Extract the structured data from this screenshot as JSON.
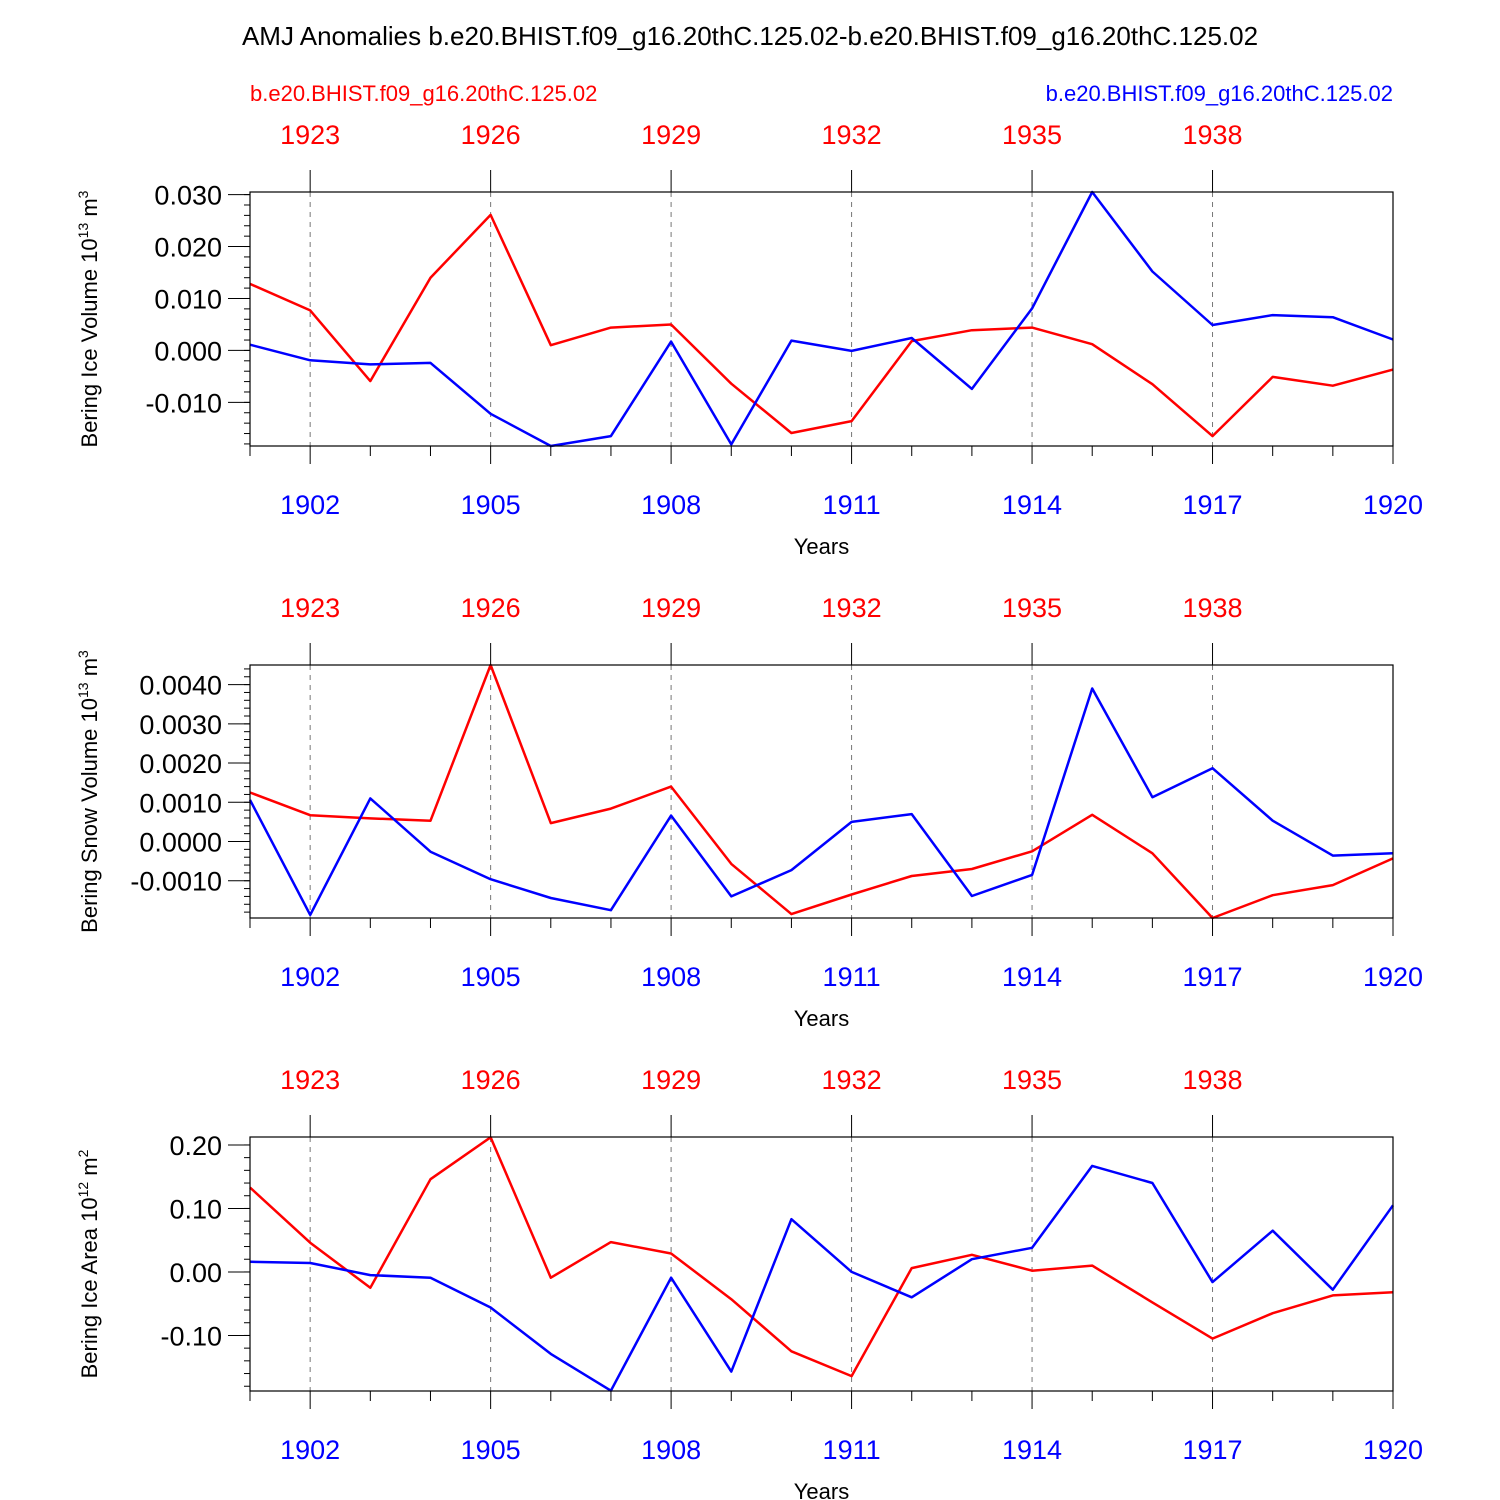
{
  "title": "AMJ Anomalies b.e20.BHIST.f09_g16.20thC.125.02-b.e20.BHIST.f09_g16.20thC.125.02",
  "colors": {
    "red": "#ff0000",
    "blue": "#0000ff",
    "text": "#000000"
  },
  "chart_data": [
    {
      "type": "line",
      "id": "ice-volume",
      "title": "AMJ Anomalies b.e20.BHIST.f09_g16.20thC.125.02-b.e20.BHIST.f09_g16.20thC.125.02",
      "legend_left": "b.e20.BHIST.f09_g16.20thC.125.02",
      "legend_right": "b.e20.BHIST.f09_g16.20thC.125.02",
      "ylabel": {
        "base": "Bering Ice Volume 10",
        "exp": "13",
        "unit": " m",
        "unit_exp": "3"
      },
      "xlabel": "Years",
      "x_bottom": [
        1901,
        1902,
        1903,
        1904,
        1905,
        1906,
        1907,
        1908,
        1909,
        1910,
        1911,
        1912,
        1913,
        1914,
        1915,
        1916,
        1917,
        1918,
        1919,
        1920
      ],
      "x_top": [
        1922,
        1923,
        1924,
        1925,
        1926,
        1927,
        1928,
        1929,
        1930,
        1931,
        1932,
        1933,
        1934,
        1935,
        1936,
        1937,
        1938,
        1939,
        1940,
        1941
      ],
      "bottom_tick_labels": [
        "1902",
        "1905",
        "1908",
        "1911",
        "1914",
        "1917",
        "1920"
      ],
      "bottom_tick_values": [
        1902,
        1905,
        1908,
        1911,
        1914,
        1917,
        1920
      ],
      "top_tick_labels": [
        "1923",
        "1926",
        "1929",
        "1932",
        "1935",
        "1938"
      ],
      "top_tick_values": [
        1923,
        1926,
        1929,
        1932,
        1935,
        1938
      ],
      "ylim": [
        -0.0184,
        0.0305
      ],
      "y_ticks": [
        0.03,
        0.02,
        0.01,
        0.0,
        -0.01
      ],
      "y_tick_labels": [
        "0.030",
        "0.020",
        "0.010",
        "0.000",
        "-0.010"
      ],
      "y_minor_step": 0.002,
      "series": [
        {
          "name": "b.e20.BHIST.f09_g16.20thC.125.02 (1922-1941)",
          "color": "red",
          "values": [
            0.0128,
            0.0077,
            -0.0059,
            0.014,
            0.0261,
            0.001,
            0.0044,
            0.005,
            -0.0064,
            -0.0159,
            -0.0136,
            0.0018,
            0.0039,
            0.0044,
            0.0012,
            -0.0065,
            -0.0165,
            -0.0051,
            -0.0068,
            -0.0037
          ]
        },
        {
          "name": "b.e20.BHIST.f09_g16.20thC.125.02 (1901-1920)",
          "color": "blue",
          "values": [
            0.0011,
            -0.0019,
            -0.0027,
            -0.0024,
            -0.0122,
            -0.0184,
            -0.0165,
            0.0017,
            -0.0181,
            0.0019,
            -0.0001,
            0.0024,
            -0.0074,
            0.0081,
            0.0305,
            0.0152,
            0.0049,
            0.0068,
            0.0064,
            0.0021
          ]
        }
      ]
    },
    {
      "type": "line",
      "id": "snow-volume",
      "ylabel": {
        "base": "Bering Snow Volume 10",
        "exp": "13",
        "unit": " m",
        "unit_exp": "3"
      },
      "xlabel": "Years",
      "x_bottom": [
        1901,
        1902,
        1903,
        1904,
        1905,
        1906,
        1907,
        1908,
        1909,
        1910,
        1911,
        1912,
        1913,
        1914,
        1915,
        1916,
        1917,
        1918,
        1919,
        1920
      ],
      "bottom_tick_labels": [
        "1902",
        "1905",
        "1908",
        "1911",
        "1914",
        "1917",
        "1920"
      ],
      "bottom_tick_values": [
        1902,
        1905,
        1908,
        1911,
        1914,
        1917,
        1920
      ],
      "top_tick_labels": [
        "1923",
        "1926",
        "1929",
        "1932",
        "1935",
        "1938"
      ],
      "top_tick_values": [
        1923,
        1926,
        1929,
        1932,
        1935,
        1938
      ],
      "ylim": [
        -0.00195,
        0.0045
      ],
      "y_ticks": [
        0.004,
        0.003,
        0.002,
        0.001,
        0.0,
        -0.001
      ],
      "y_tick_labels": [
        "0.0040",
        "0.0030",
        "0.0020",
        "0.0010",
        "0.0000",
        "-0.0010"
      ],
      "y_minor_step": 0.0002,
      "series": [
        {
          "name": "b.e20.BHIST.f09_g16.20thC.125.02 (1922-1941)",
          "color": "red",
          "values": [
            0.00125,
            0.00067,
            0.00059,
            0.00053,
            0.0045,
            0.00047,
            0.00084,
            0.0014,
            -0.00057,
            -0.00185,
            -0.00135,
            -0.00088,
            -0.0007,
            -0.00025,
            0.00068,
            -0.0003,
            -0.00195,
            -0.00137,
            -0.00111,
            -0.00043
          ]
        },
        {
          "name": "b.e20.BHIST.f09_g16.20thC.125.02 (1901-1920)",
          "color": "blue",
          "values": [
            0.00106,
            -0.00187,
            0.0011,
            -0.00026,
            -0.00096,
            -0.00144,
            -0.00175,
            0.00066,
            -0.0014,
            -0.00073,
            0.0005,
            0.0007,
            -0.00139,
            -0.00085,
            0.0039,
            0.00113,
            0.00187,
            0.00053,
            -0.00036,
            -0.0003
          ]
        }
      ]
    },
    {
      "type": "line",
      "id": "ice-area",
      "ylabel": {
        "base": "Bering Ice Area 10",
        "exp": "12",
        "unit": " m",
        "unit_exp": "2"
      },
      "xlabel": "Years",
      "x_bottom": [
        1901,
        1902,
        1903,
        1904,
        1905,
        1906,
        1907,
        1908,
        1909,
        1910,
        1911,
        1912,
        1913,
        1914,
        1915,
        1916,
        1917,
        1918,
        1919,
        1920
      ],
      "bottom_tick_labels": [
        "1902",
        "1905",
        "1908",
        "1911",
        "1914",
        "1917",
        "1920"
      ],
      "bottom_tick_values": [
        1902,
        1905,
        1908,
        1911,
        1914,
        1917,
        1920
      ],
      "top_tick_labels": [
        "1923",
        "1926",
        "1929",
        "1932",
        "1935",
        "1938"
      ],
      "top_tick_values": [
        1923,
        1926,
        1929,
        1932,
        1935,
        1938
      ],
      "ylim": [
        -0.1875,
        0.2125
      ],
      "y_ticks": [
        0.2,
        0.1,
        0.0,
        -0.1
      ],
      "y_tick_labels": [
        "0.20",
        "0.10",
        "0.00",
        "-0.10"
      ],
      "y_minor_step": 0.02,
      "series": [
        {
          "name": "b.e20.BHIST.f09_g16.20thC.125.02 (1922-1941)",
          "color": "red",
          "values": [
            0.133,
            0.046,
            -0.025,
            0.146,
            0.212,
            -0.009,
            0.047,
            0.029,
            -0.043,
            -0.125,
            -0.164,
            0.006,
            0.027,
            0.002,
            0.01,
            -0.048,
            -0.105,
            -0.065,
            -0.037,
            -0.032
          ]
        },
        {
          "name": "b.e20.BHIST.f09_g16.20thC.125.02 (1901-1920)",
          "color": "blue",
          "values": [
            0.016,
            0.014,
            -0.005,
            -0.009,
            -0.056,
            -0.129,
            -0.187,
            -0.009,
            -0.157,
            0.083,
            0.0,
            -0.04,
            0.02,
            0.038,
            0.167,
            0.14,
            -0.016,
            0.065,
            -0.028,
            0.105
          ]
        }
      ]
    }
  ]
}
